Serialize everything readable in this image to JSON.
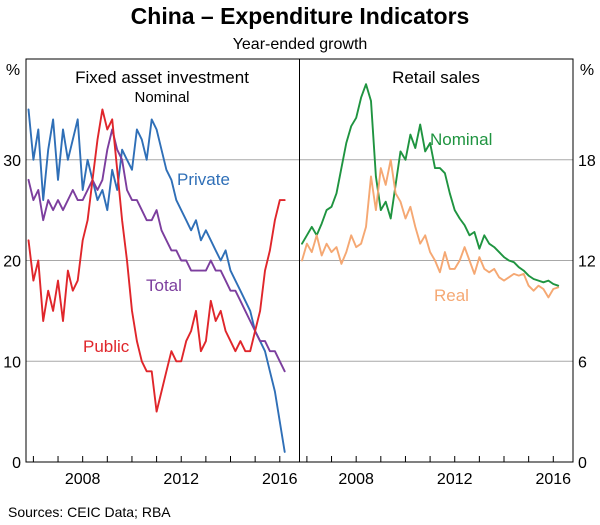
{
  "title": "China – Expenditure Indicators",
  "subtitle": "Year-ended growth",
  "source": "Sources:   CEIC Data; RBA",
  "chart_data": [
    {
      "type": "line",
      "panel": "left",
      "title": "Fixed asset investment",
      "subtitle": "Nominal",
      "ylabel": "%",
      "ylim": [
        0,
        40
      ],
      "yticks": [
        0,
        10,
        20,
        30
      ],
      "xlim": [
        2005.7,
        2016.8
      ],
      "xticks": [
        2008,
        2012,
        2016
      ],
      "xtick_labels": [
        "2008",
        "2012",
        "2016"
      ],
      "grid": true,
      "series": [
        {
          "name": "Private",
          "color": "#2f6fb7",
          "x": [
            2005.8,
            2006.0,
            2006.2,
            2006.4,
            2006.6,
            2006.8,
            2007.0,
            2007.2,
            2007.4,
            2007.6,
            2007.8,
            2008.0,
            2008.2,
            2008.4,
            2008.6,
            2008.8,
            2009.0,
            2009.2,
            2009.4,
            2009.6,
            2009.8,
            2010.0,
            2010.2,
            2010.4,
            2010.6,
            2010.8,
            2011.0,
            2011.2,
            2011.4,
            2011.6,
            2011.8,
            2012.0,
            2012.2,
            2012.4,
            2012.6,
            2012.8,
            2013.0,
            2013.2,
            2013.4,
            2013.6,
            2013.8,
            2014.0,
            2014.2,
            2014.4,
            2014.6,
            2014.8,
            2015.0,
            2015.2,
            2015.4,
            2015.6,
            2015.8,
            2016.0,
            2016.2
          ],
          "values": [
            35,
            30,
            33,
            26,
            31,
            34,
            28,
            33,
            30,
            32,
            34,
            27,
            30,
            28,
            26,
            27,
            25,
            29,
            27,
            31,
            30,
            29,
            33,
            32,
            30,
            34,
            33,
            31,
            29,
            28,
            26,
            25,
            24,
            23,
            24,
            22,
            23,
            22,
            21,
            20,
            21,
            19,
            18,
            17,
            16,
            15,
            13,
            12,
            11,
            9,
            7,
            4,
            1
          ]
        },
        {
          "name": "Total",
          "color": "#7c3e9e",
          "x": [
            2005.8,
            2006.0,
            2006.2,
            2006.4,
            2006.6,
            2006.8,
            2007.0,
            2007.2,
            2007.4,
            2007.6,
            2007.8,
            2008.0,
            2008.2,
            2008.4,
            2008.6,
            2008.8,
            2009.0,
            2009.2,
            2009.4,
            2009.6,
            2009.8,
            2010.0,
            2010.2,
            2010.4,
            2010.6,
            2010.8,
            2011.0,
            2011.2,
            2011.4,
            2011.6,
            2011.8,
            2012.0,
            2012.2,
            2012.4,
            2012.6,
            2012.8,
            2013.0,
            2013.2,
            2013.4,
            2013.6,
            2013.8,
            2014.0,
            2014.2,
            2014.4,
            2014.6,
            2014.8,
            2015.0,
            2015.2,
            2015.4,
            2015.6,
            2015.8,
            2016.0,
            2016.2
          ],
          "values": [
            28,
            26,
            27,
            24,
            26,
            25,
            26,
            25,
            26,
            27,
            26,
            26,
            27,
            28,
            27,
            28,
            31,
            33,
            31,
            30,
            27,
            26,
            26,
            25,
            24,
            24,
            25,
            23,
            22,
            21,
            21,
            20,
            20,
            19,
            19,
            19,
            19,
            20,
            19,
            19,
            18,
            17,
            17,
            16,
            15,
            14,
            13,
            12,
            12,
            11,
            11,
            10,
            9
          ]
        },
        {
          "name": "Public",
          "color": "#e0262b",
          "x": [
            2005.8,
            2006.0,
            2006.2,
            2006.4,
            2006.6,
            2006.8,
            2007.0,
            2007.2,
            2007.4,
            2007.6,
            2007.8,
            2008.0,
            2008.2,
            2008.4,
            2008.6,
            2008.8,
            2009.0,
            2009.2,
            2009.4,
            2009.6,
            2009.8,
            2010.0,
            2010.2,
            2010.4,
            2010.6,
            2010.8,
            2011.0,
            2011.2,
            2011.4,
            2011.6,
            2011.8,
            2012.0,
            2012.2,
            2012.4,
            2012.6,
            2012.8,
            2013.0,
            2013.2,
            2013.4,
            2013.6,
            2013.8,
            2014.0,
            2014.2,
            2014.4,
            2014.6,
            2014.8,
            2015.0,
            2015.2,
            2015.4,
            2015.6,
            2015.8,
            2016.0,
            2016.2
          ],
          "values": [
            22,
            18,
            20,
            14,
            17,
            15,
            18,
            14,
            19,
            17,
            18,
            22,
            24,
            28,
            32,
            35,
            33,
            34,
            29,
            24,
            20,
            15,
            12,
            10,
            9,
            9,
            5,
            7,
            9,
            11,
            10,
            10,
            12,
            13,
            15,
            11,
            12,
            16,
            14,
            15,
            13,
            12,
            11,
            12,
            11,
            11,
            13,
            15,
            19,
            21,
            24,
            26,
            26
          ]
        }
      ],
      "labels": [
        "Private",
        "Total",
        "Public"
      ]
    },
    {
      "type": "line",
      "panel": "right",
      "title": "Retail sales",
      "ylabel": "%",
      "ylim": [
        0,
        24
      ],
      "yticks": [
        0,
        6,
        12,
        18
      ],
      "xlim": [
        2005.7,
        2016.8
      ],
      "xticks": [
        2008,
        2012,
        2016
      ],
      "xtick_labels": [
        "2008",
        "2012",
        "2016"
      ],
      "grid": true,
      "series": [
        {
          "name": "Nominal",
          "color": "#1f9440",
          "x": [
            2005.8,
            2006.0,
            2006.2,
            2006.4,
            2006.6,
            2006.8,
            2007.0,
            2007.2,
            2007.4,
            2007.6,
            2007.8,
            2008.0,
            2008.2,
            2008.4,
            2008.6,
            2008.8,
            2009.0,
            2009.2,
            2009.4,
            2009.6,
            2009.8,
            2010.0,
            2010.2,
            2010.4,
            2010.6,
            2010.8,
            2011.0,
            2011.2,
            2011.4,
            2011.6,
            2011.8,
            2012.0,
            2012.2,
            2012.4,
            2012.6,
            2012.8,
            2013.0,
            2013.2,
            2013.4,
            2013.6,
            2013.8,
            2014.0,
            2014.2,
            2014.4,
            2014.6,
            2014.8,
            2015.0,
            2015.2,
            2015.4,
            2015.6,
            2015.8,
            2016.0,
            2016.2
          ],
          "values": [
            13,
            13.5,
            14,
            13.5,
            14.2,
            15,
            15.2,
            16,
            17.5,
            19,
            20,
            20.5,
            21.7,
            22.5,
            21.5,
            17,
            15,
            15.5,
            14.5,
            16.5,
            18.5,
            18,
            19.5,
            18.7,
            20.1,
            18.5,
            19,
            17.5,
            17.5,
            17.2,
            16,
            15,
            14.5,
            14.1,
            13.5,
            13.7,
            12.7,
            13.5,
            13,
            12.8,
            12.5,
            12.2,
            12,
            11.9,
            11.6,
            11.4,
            11.1,
            10.9,
            10.8,
            10.7,
            10.8,
            10.6,
            10.5
          ]
        },
        {
          "name": "Real",
          "color": "#f5a873",
          "x": [
            2005.8,
            2006.0,
            2006.2,
            2006.4,
            2006.6,
            2006.8,
            2007.0,
            2007.2,
            2007.4,
            2007.6,
            2007.8,
            2008.0,
            2008.2,
            2008.4,
            2008.6,
            2008.8,
            2009.0,
            2009.2,
            2009.4,
            2009.6,
            2009.8,
            2010.0,
            2010.2,
            2010.4,
            2010.6,
            2010.8,
            2011.0,
            2011.2,
            2011.4,
            2011.6,
            2011.8,
            2012.0,
            2012.2,
            2012.4,
            2012.6,
            2012.8,
            2013.0,
            2013.2,
            2013.4,
            2013.6,
            2013.8,
            2014.0,
            2014.2,
            2014.4,
            2014.6,
            2014.8,
            2015.0,
            2015.2,
            2015.4,
            2015.6,
            2015.8,
            2016.0,
            2016.2
          ],
          "values": [
            12,
            13,
            12.5,
            13.5,
            12.3,
            13,
            12.5,
            12.8,
            11.8,
            12.5,
            13.5,
            12.8,
            13,
            14,
            17,
            15,
            17.5,
            16.5,
            18,
            16,
            15.5,
            14.5,
            15.2,
            14,
            13,
            13.5,
            12.5,
            12,
            11.3,
            12.5,
            11.5,
            11.5,
            12,
            12.8,
            12,
            11.2,
            12.2,
            11.5,
            11.3,
            11.5,
            11,
            10.8,
            11,
            11.2,
            11.1,
            11.2,
            10.5,
            10.2,
            10.5,
            10.3,
            9.8,
            10.3,
            10.4
          ]
        }
      ],
      "labels": [
        "Nominal",
        "Real"
      ]
    }
  ]
}
